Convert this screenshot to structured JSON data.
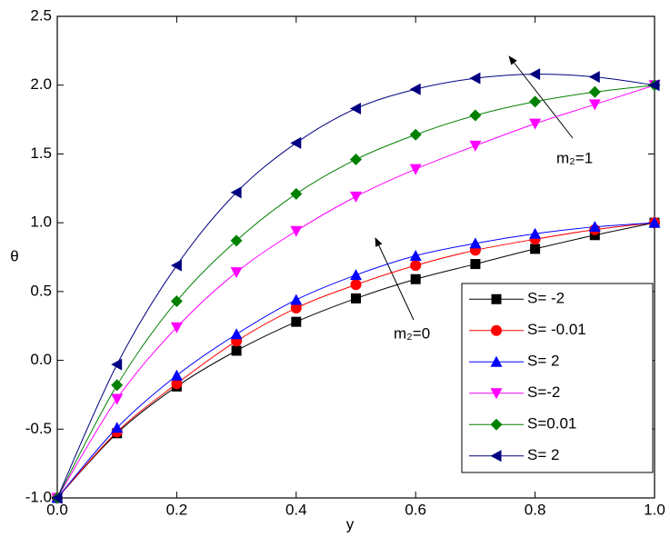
{
  "chart_data": {
    "type": "line",
    "xlabel": "y",
    "ylabel": "θ",
    "x": [
      0,
      0.1,
      0.2,
      0.3,
      0.4,
      0.5,
      0.6,
      0.7,
      0.8,
      0.9,
      1.0
    ],
    "xlim": [
      0,
      1.0
    ],
    "xticks": [
      {
        "value": 0,
        "label": "0.0"
      },
      {
        "value": 0.2,
        "label": "0.2"
      },
      {
        "value": 0.4,
        "label": "0.4"
      },
      {
        "value": 0.6,
        "label": "0.6"
      },
      {
        "value": 0.8,
        "label": "0.8"
      },
      {
        "value": 1.0,
        "label": "1.0"
      }
    ],
    "ylim": [
      -1.0,
      2.5
    ],
    "yticks": [
      {
        "value": -1.0,
        "label": "-1.0"
      },
      {
        "value": -0.5,
        "label": "-0.5"
      },
      {
        "value": 0,
        "label": "0.0"
      },
      {
        "value": 0.5,
        "label": "0.5"
      },
      {
        "value": 1.0,
        "label": "1.0"
      },
      {
        "value": 1.5,
        "label": "1.5"
      },
      {
        "value": 2.0,
        "label": "2.0"
      },
      {
        "value": 2.5,
        "label": "2.5"
      }
    ],
    "legend": "lower right",
    "series": [
      {
        "name": "S= -2",
        "color": "#000000",
        "marker": "square",
        "values": [
          -1.0,
          -0.53,
          -0.19,
          0.07,
          0.28,
          0.45,
          0.59,
          0.7,
          0.81,
          0.91,
          1.0
        ]
      },
      {
        "name": "S= -0.01",
        "color": "#ff0000",
        "marker": "circle",
        "values": [
          -1.0,
          -0.52,
          -0.17,
          0.14,
          0.38,
          0.55,
          0.69,
          0.8,
          0.88,
          0.95,
          1.0
        ]
      },
      {
        "name": "S= 2",
        "color": "#0000ff",
        "marker": "triangle-up",
        "values": [
          -1.0,
          -0.49,
          -0.11,
          0.19,
          0.44,
          0.62,
          0.76,
          0.85,
          0.92,
          0.97,
          1.0
        ]
      },
      {
        "name": "S=-2",
        "color": "#ff00ff",
        "marker": "triangle-down",
        "values": [
          -1.0,
          -0.28,
          0.24,
          0.64,
          0.94,
          1.19,
          1.39,
          1.56,
          1.72,
          1.86,
          2.0
        ]
      },
      {
        "name": "S=0.01",
        "color": "#008000",
        "marker": "diamond",
        "values": [
          -1.0,
          -0.18,
          0.43,
          0.87,
          1.21,
          1.46,
          1.64,
          1.78,
          1.88,
          1.95,
          2.0
        ]
      },
      {
        "name": "S= 2",
        "color": "#000080",
        "marker": "triangle-left",
        "values": [
          -1.0,
          -0.03,
          0.69,
          1.22,
          1.58,
          1.83,
          1.97,
          2.05,
          2.08,
          2.06,
          2.0
        ]
      }
    ],
    "annotations": [
      "m₂=1",
      "m₂=0"
    ]
  }
}
